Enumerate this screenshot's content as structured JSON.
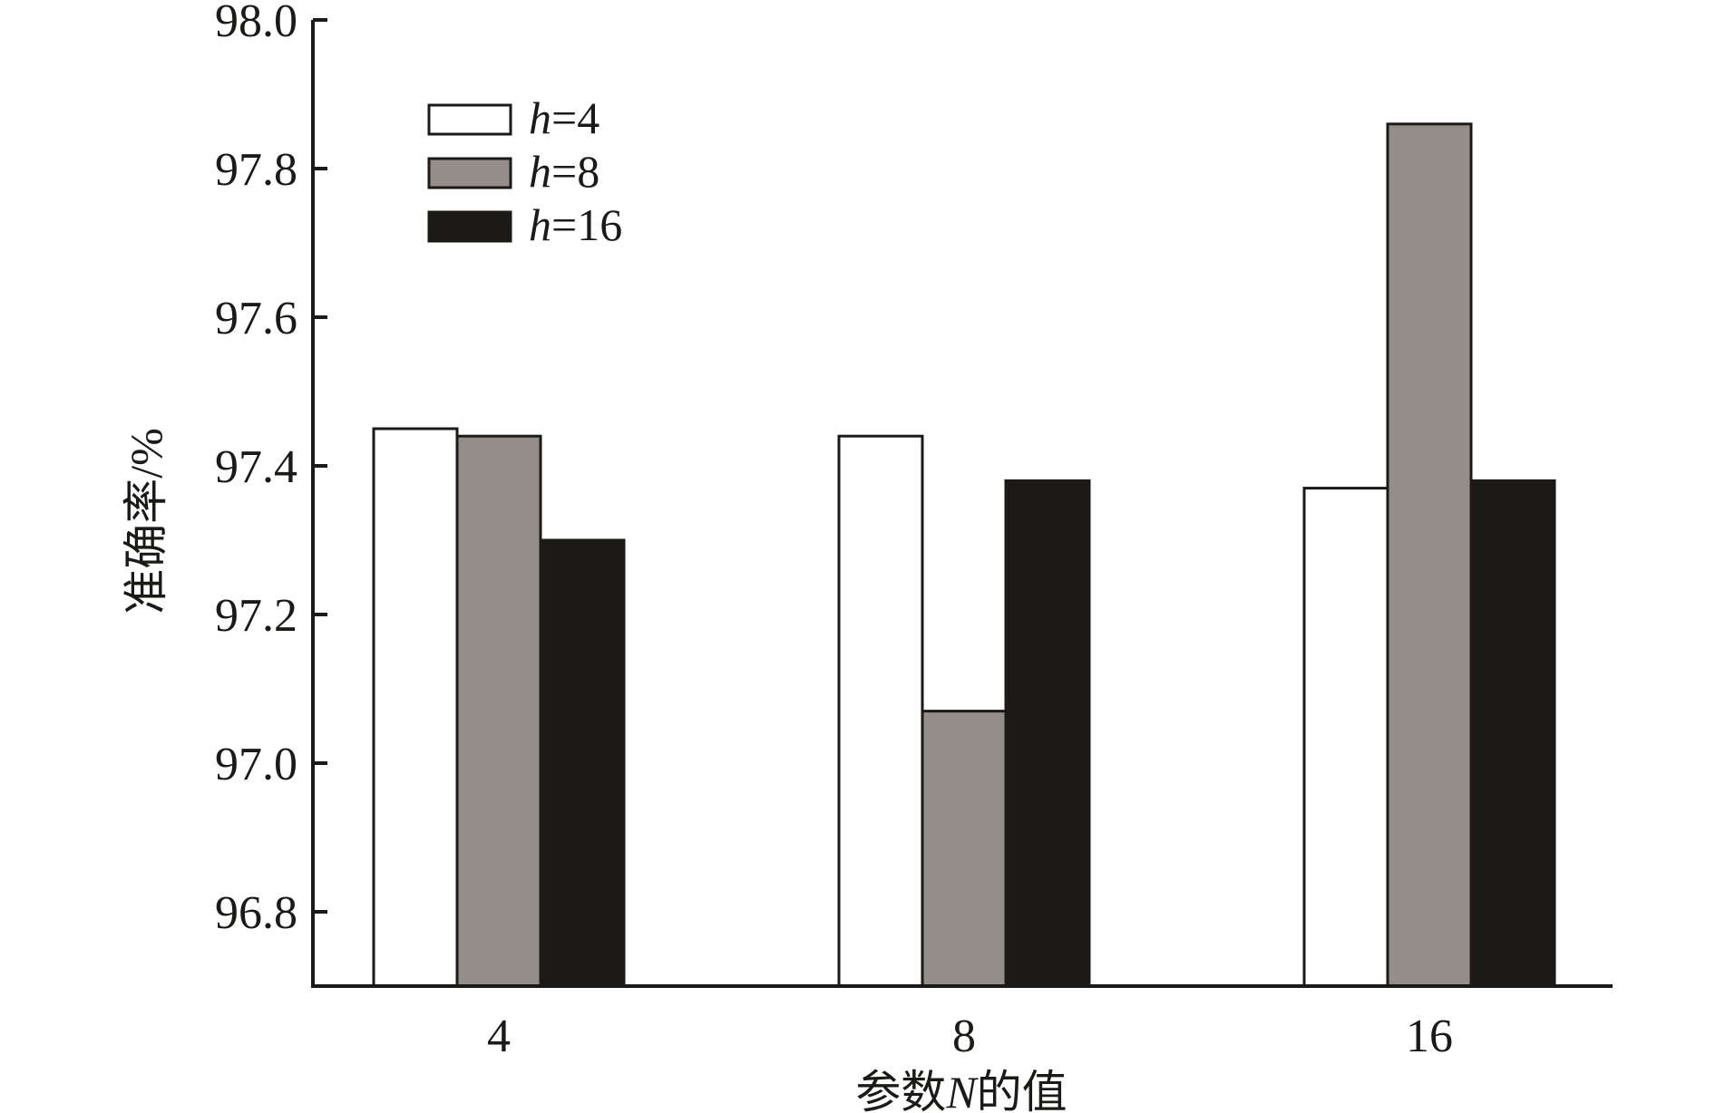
{
  "chart_data": {
    "type": "bar",
    "categories": [
      "4",
      "8",
      "16"
    ],
    "series": [
      {
        "name": "h=4",
        "legend_var": "h",
        "legend_value": "=4",
        "color": "#ffffff",
        "values": [
          97.45,
          97.44,
          97.37
        ]
      },
      {
        "name": "h=8",
        "legend_var": "h",
        "legend_value": "=8",
        "color": "#958d8a",
        "values": [
          97.44,
          97.07,
          97.86
        ]
      },
      {
        "name": "h=16",
        "legend_var": "h",
        "legend_value": "=16",
        "color": "#1c1a17",
        "values": [
          97.3,
          97.38,
          97.38
        ]
      }
    ],
    "xlabel": "参数N的值",
    "xlabel_parts": {
      "before": "参数",
      "var": "N",
      "after": "的值"
    },
    "ylabel": "准确率/%",
    "ylim": [
      96.7,
      98.0
    ],
    "yticks": [
      "96.8",
      "97.0",
      "97.2",
      "97.4",
      "97.6",
      "97.8",
      "98.0"
    ],
    "legend_position": "top-left",
    "grid": false
  }
}
